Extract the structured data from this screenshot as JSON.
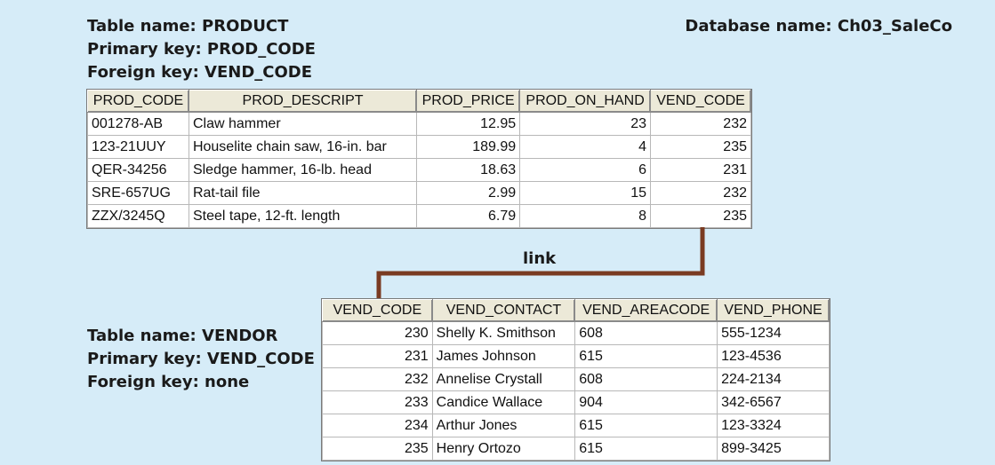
{
  "product": {
    "table_name": "Table name: PRODUCT",
    "primary_key": "Primary key: PROD_CODE",
    "foreign_key": "Foreign key: VEND_CODE",
    "columns": [
      "PROD_CODE",
      "PROD_DESCRIPT",
      "PROD_PRICE",
      "PROD_ON_HAND",
      "VEND_CODE"
    ],
    "rows": [
      [
        "001278-AB",
        "Claw hammer",
        "12.95",
        "23",
        "232"
      ],
      [
        "123-21UUY",
        "Houselite chain saw, 16-in. bar",
        "189.99",
        "4",
        "235"
      ],
      [
        "QER-34256",
        "Sledge hammer, 16-lb. head",
        "18.63",
        "6",
        "231"
      ],
      [
        "SRE-657UG",
        "Rat-tail file",
        "2.99",
        "15",
        "232"
      ],
      [
        "ZZX/3245Q",
        "Steel tape, 12-ft. length",
        "6.79",
        "8",
        "235"
      ]
    ]
  },
  "database_name": "Database name: Ch03_SaleCo",
  "link_label": "link",
  "link_color": "#7a3b22",
  "vendor": {
    "table_name": "Table name: VENDOR",
    "primary_key": "Primary key: VEND_CODE",
    "foreign_key": "Foreign key: none",
    "columns": [
      "VEND_CODE",
      "VEND_CONTACT",
      "VEND_AREACODE",
      "VEND_PHONE"
    ],
    "rows": [
      [
        "230",
        "Shelly K. Smithson",
        "608",
        "555-1234"
      ],
      [
        "231",
        "James Johnson",
        "615",
        "123-4536"
      ],
      [
        "232",
        "Annelise Crystall",
        "608",
        "224-2134"
      ],
      [
        "233",
        "Candice Wallace",
        "904",
        "342-6567"
      ],
      [
        "234",
        "Arthur Jones",
        "615",
        "123-3324"
      ],
      [
        "235",
        "Henry Ortozo",
        "615",
        "899-3425"
      ]
    ]
  }
}
